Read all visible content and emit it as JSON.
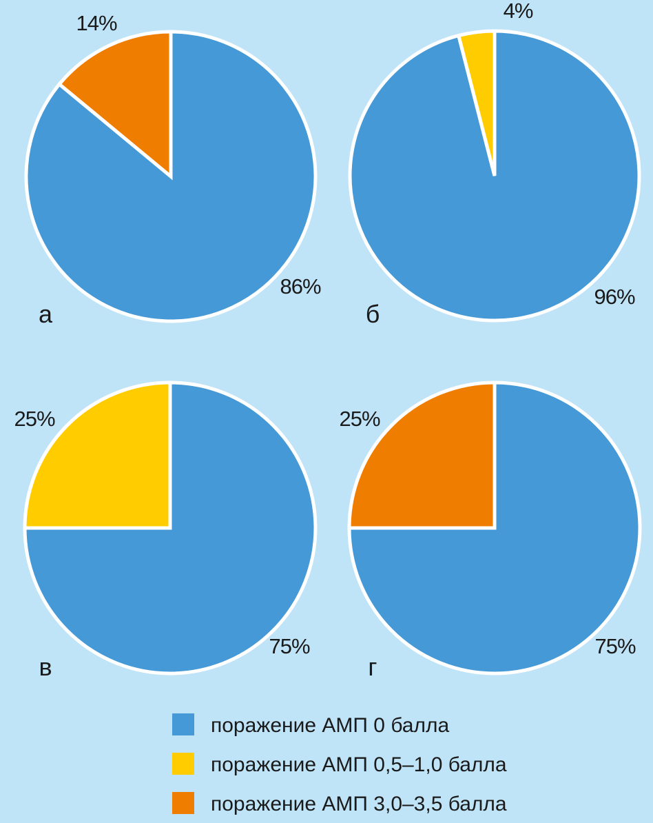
{
  "background_color": "#bfe3f7",
  "chart_data": [
    {
      "type": "pie",
      "panel": "а",
      "slices": [
        {
          "category": "поражение АМП 0 балла",
          "value": 86,
          "label": "86%",
          "color": "#4599d6"
        },
        {
          "category": "поражение АМП 3,0–3,5 балла",
          "value": 14,
          "label": "14%",
          "color": "#ef7d00"
        }
      ]
    },
    {
      "type": "pie",
      "panel": "б",
      "slices": [
        {
          "category": "поражение АМП 0 балла",
          "value": 96,
          "label": "96%",
          "color": "#4599d6"
        },
        {
          "category": "поражение АМП 0,5–1,0 балла",
          "value": 4,
          "label": "4%",
          "color": "#ffcc00"
        }
      ]
    },
    {
      "type": "pie",
      "panel": "в",
      "slices": [
        {
          "category": "поражение АМП 0 балла",
          "value": 75,
          "label": "75%",
          "color": "#4599d6"
        },
        {
          "category": "поражение АМП 0,5–1,0 балла",
          "value": 25,
          "label": "25%",
          "color": "#ffcc00"
        }
      ]
    },
    {
      "type": "pie",
      "panel": "г",
      "slices": [
        {
          "category": "поражение АМП 0 балла",
          "value": 75,
          "label": "75%",
          "color": "#4599d6"
        },
        {
          "category": "поражение АМП 3,0–3,5 балла",
          "value": 25,
          "label": "25%",
          "color": "#ef7d00"
        }
      ]
    }
  ],
  "legend": {
    "items": [
      {
        "label": "поражение АМП 0 балла",
        "color": "#4599d6"
      },
      {
        "label": "поражение АМП 0,5–1,0 балла",
        "color": "#ffcc00"
      },
      {
        "label": "поражение АМП 3,0–3,5 балла",
        "color": "#ef7d00"
      }
    ]
  }
}
